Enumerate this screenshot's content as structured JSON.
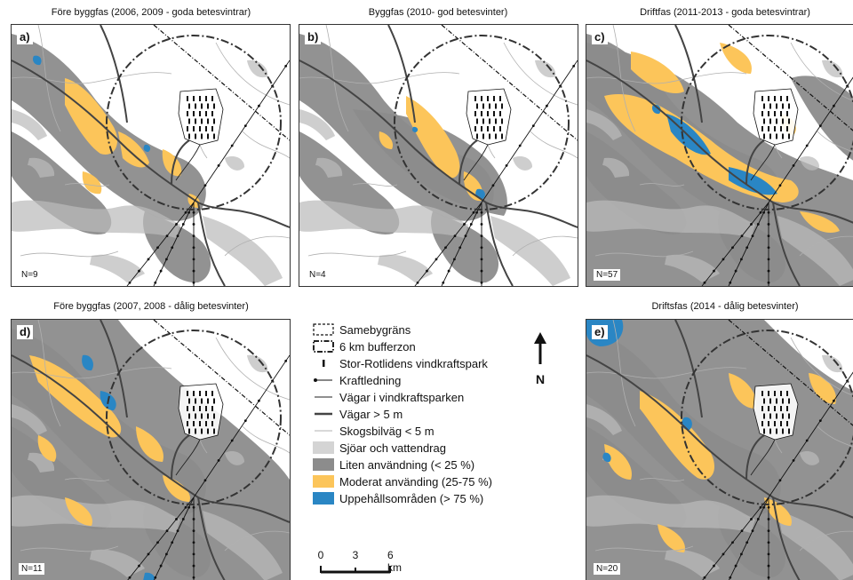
{
  "panels": [
    {
      "id": "a",
      "letter": "a)",
      "title": "Före byggfas (2006, 2009 - goda betesvintrar)",
      "n_label": "N=9"
    },
    {
      "id": "b",
      "letter": "b)",
      "title": "Byggfas (2010- god betesvinter)",
      "n_label": "N=4"
    },
    {
      "id": "c",
      "letter": "c)",
      "title": "Driftfas (2011-2013 - goda betesvintrar)",
      "n_label": "N=57"
    },
    {
      "id": "d",
      "letter": "d)",
      "title": "Före byggfas (2007, 2008 - dålig betesvinter)",
      "n_label": "N=11"
    },
    {
      "id": "e",
      "letter": "e)",
      "title": "Driftsfas (2014 - dålig betesvinter)",
      "n_label": "N=20"
    }
  ],
  "legend": {
    "items": [
      {
        "key": "samebygrans",
        "label": "Samebygräns"
      },
      {
        "key": "buffer",
        "label": "6 km bufferzon"
      },
      {
        "key": "turbines",
        "label": "Stor-Rotlidens vindkraftspark"
      },
      {
        "key": "powerline",
        "label": "Kraftledning"
      },
      {
        "key": "parkroads",
        "label": "Vägar i vindkraftsparken"
      },
      {
        "key": "majorroads",
        "label": "Vägar > 5 m"
      },
      {
        "key": "forestroads",
        "label": "Skogsbilväg < 5 m"
      },
      {
        "key": "lakes",
        "label": "Sjöar och vattendrag"
      },
      {
        "key": "lowuse",
        "label": "Liten användning (< 25 %)"
      },
      {
        "key": "moduse",
        "label": "Moderat använding (25-75 %)"
      },
      {
        "key": "highuse",
        "label": "Uppehållsområden (> 75 %)"
      }
    ]
  },
  "north_label": "N",
  "scale": {
    "ticks": [
      "0",
      "3",
      "6 km"
    ]
  },
  "colors": {
    "low_use": "#8c8c8c",
    "moderate_use": "#fcc55a",
    "high_use": "#2a86c4",
    "lakes": "#d4d4d4",
    "roads": "#444444",
    "forest_roads": "#b0b0b0"
  }
}
